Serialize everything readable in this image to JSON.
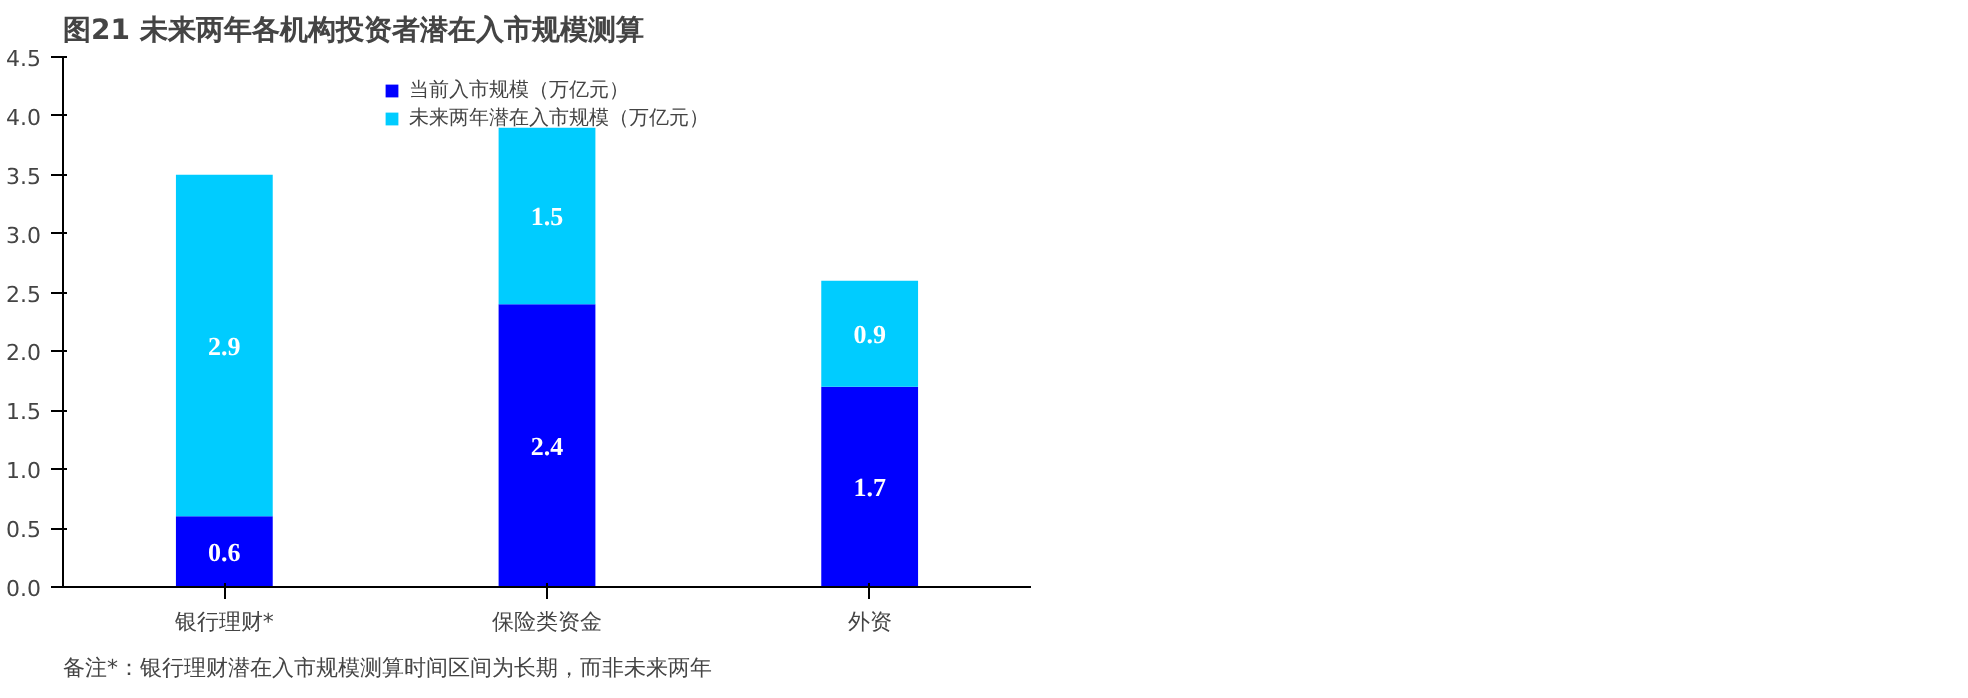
{
  "chart_data": {
    "type": "bar",
    "stacked": true,
    "title": "图21 未来两年各机构投资者潜在入市规模测算",
    "categories": [
      "银行理财*",
      "保险类资金",
      "外资"
    ],
    "series": [
      {
        "name": "当前入市规模（万亿元）",
        "color": "#0000ff",
        "values": [
          0.6,
          2.4,
          1.7
        ]
      },
      {
        "name": "未来两年潜在入市规模（万亿元）",
        "color": "#00ccff",
        "values": [
          2.9,
          1.5,
          0.9
        ]
      }
    ],
    "ylim": [
      0,
      4.5
    ],
    "yticks": [
      {
        "value": 0,
        "label": "0.0"
      },
      {
        "value": 0.5,
        "label": "0.5"
      },
      {
        "value": 1,
        "label": "1.0"
      },
      {
        "value": 1.5,
        "label": "1.5"
      },
      {
        "value": 2,
        "label": "2.0"
      },
      {
        "value": 2.5,
        "label": "2.5"
      },
      {
        "value": 3,
        "label": "3.0"
      },
      {
        "value": 3.5,
        "label": "3.5"
      },
      {
        "value": 4,
        "label": "4.0"
      },
      {
        "value": 4.5,
        "label": "4.5"
      }
    ],
    "grid": false,
    "legend": "top",
    "data_labels": true,
    "annotations": [
      "备注*：银行理财潜在入市规模测算时间区间为长期，而非未来两年"
    ]
  }
}
